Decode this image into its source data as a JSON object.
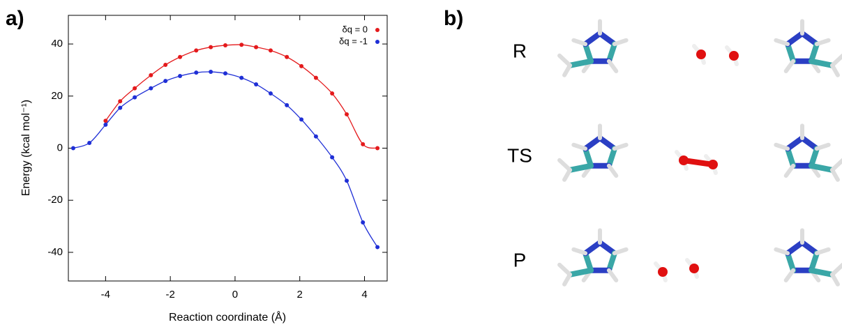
{
  "chart_data": {
    "type": "scatter-line",
    "panel_label": "a)",
    "x_label": "Reaction coordinate (Å)",
    "y_label": "Energy (kcal mol⁻¹)",
    "x": [
      -5.0,
      -4.5,
      -4.0,
      -3.55,
      -3.1,
      -2.6,
      -2.15,
      -1.7,
      -1.2,
      -0.75,
      -0.3,
      0.2,
      0.65,
      1.1,
      1.6,
      2.05,
      2.5,
      3.0,
      3.45,
      3.95,
      4.4
    ],
    "series": [
      {
        "name": "δq = 0",
        "color": "#e41a1c",
        "values": [
          null,
          null,
          10.5,
          18,
          23,
          28,
          32,
          35,
          37.5,
          38.8,
          39.5,
          39.7,
          38.8,
          37.5,
          35,
          31.5,
          27,
          21,
          13,
          1.5,
          0
        ]
      },
      {
        "name": "δq = -1",
        "color": "#1f2fd6",
        "values": [
          0,
          2,
          9,
          15.5,
          19.5,
          23,
          25.8,
          27.7,
          29,
          29.3,
          28.7,
          27,
          24.5,
          21,
          16.5,
          11,
          4.5,
          -3.5,
          -12.5,
          -28.5,
          -38
        ]
      }
    ],
    "xlim": [
      -5.15,
      4.7
    ],
    "ylim": [
      -51,
      51
    ],
    "xticks": [
      -4,
      -2,
      0,
      2,
      4
    ],
    "yticks": [
      -40,
      -20,
      0,
      20,
      40
    ],
    "legend": "top-right"
  },
  "panel_b": {
    "panel_label": "b)",
    "rows": [
      "R",
      "TS",
      "P"
    ]
  }
}
